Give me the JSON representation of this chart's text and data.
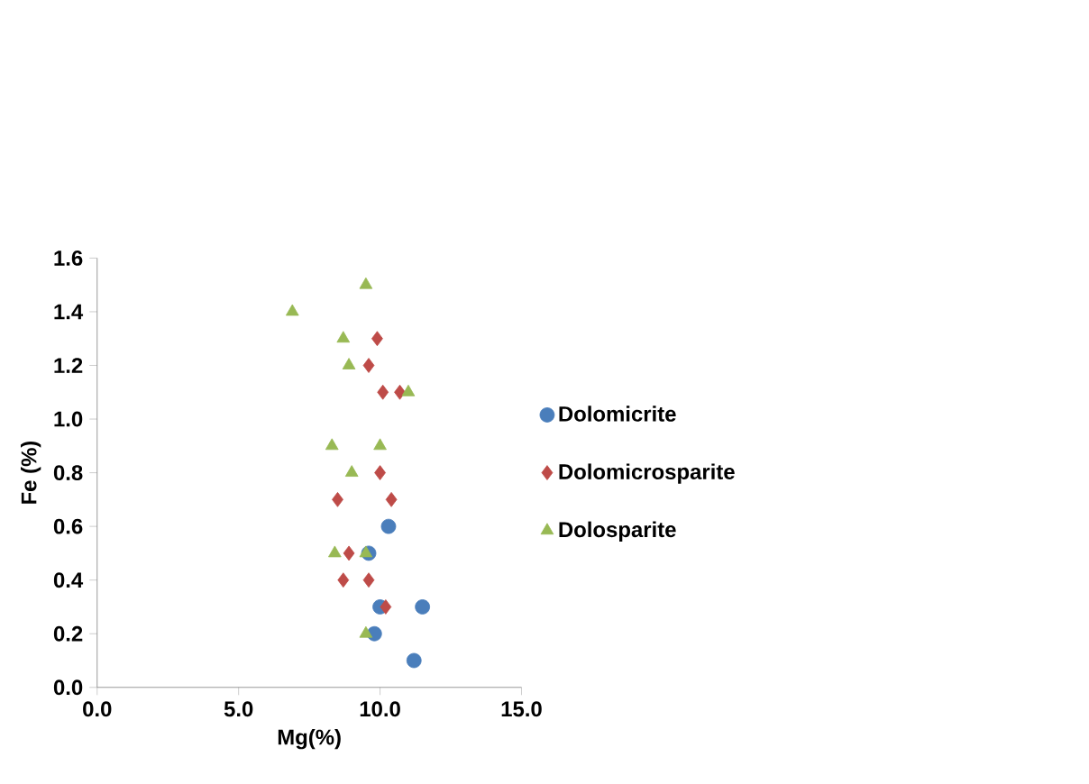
{
  "chart_data": {
    "type": "scatter",
    "xlabel": "Mg(%)",
    "ylabel": "Fe (%)",
    "xlim": [
      0,
      15
    ],
    "ylim": [
      0,
      1.6
    ],
    "xticks": [
      {
        "value": 0,
        "label": "0.0"
      },
      {
        "value": 5,
        "label": "5.0"
      },
      {
        "value": 10,
        "label": "10.0"
      },
      {
        "value": 15,
        "label": "15.0"
      }
    ],
    "yticks": [
      {
        "value": 0,
        "label": "0.0"
      },
      {
        "value": 0.2,
        "label": "0.2"
      },
      {
        "value": 0.4,
        "label": "0.4"
      },
      {
        "value": 0.6,
        "label": "0.6"
      },
      {
        "value": 0.8,
        "label": "0.8"
      },
      {
        "value": 1.0,
        "label": "1.0"
      },
      {
        "value": 1.2,
        "label": "1.2"
      },
      {
        "value": 1.4,
        "label": "1.4"
      },
      {
        "value": 1.6,
        "label": "1.6"
      }
    ],
    "legend": "right",
    "grid": false,
    "series": [
      {
        "name": "Dolomicrite",
        "color": "#4a7ebb",
        "marker": "circle",
        "x": [
          10.3,
          9.6,
          10.0,
          11.5,
          9.8,
          11.2
        ],
        "values": [
          0.6,
          0.5,
          0.3,
          0.3,
          0.2,
          0.1
        ]
      },
      {
        "name": "Dolomicrosparite",
        "color": "#be4b48",
        "marker": "diamond",
        "x": [
          9.9,
          9.6,
          10.1,
          10.7,
          10.0,
          8.5,
          10.4,
          8.9,
          8.7,
          9.6,
          10.2
        ],
        "values": [
          1.3,
          1.2,
          1.1,
          1.1,
          0.8,
          0.7,
          0.7,
          0.5,
          0.4,
          0.4,
          0.3
        ]
      },
      {
        "name": "Dolosparite",
        "color": "#98b954",
        "marker": "triangle",
        "x": [
          9.5,
          6.9,
          8.7,
          8.9,
          11.0,
          8.3,
          10.0,
          9.0,
          8.4,
          9.5,
          9.5
        ],
        "values": [
          1.5,
          1.4,
          1.3,
          1.2,
          1.1,
          0.9,
          0.9,
          0.8,
          0.5,
          0.5,
          0.2
        ]
      }
    ]
  }
}
